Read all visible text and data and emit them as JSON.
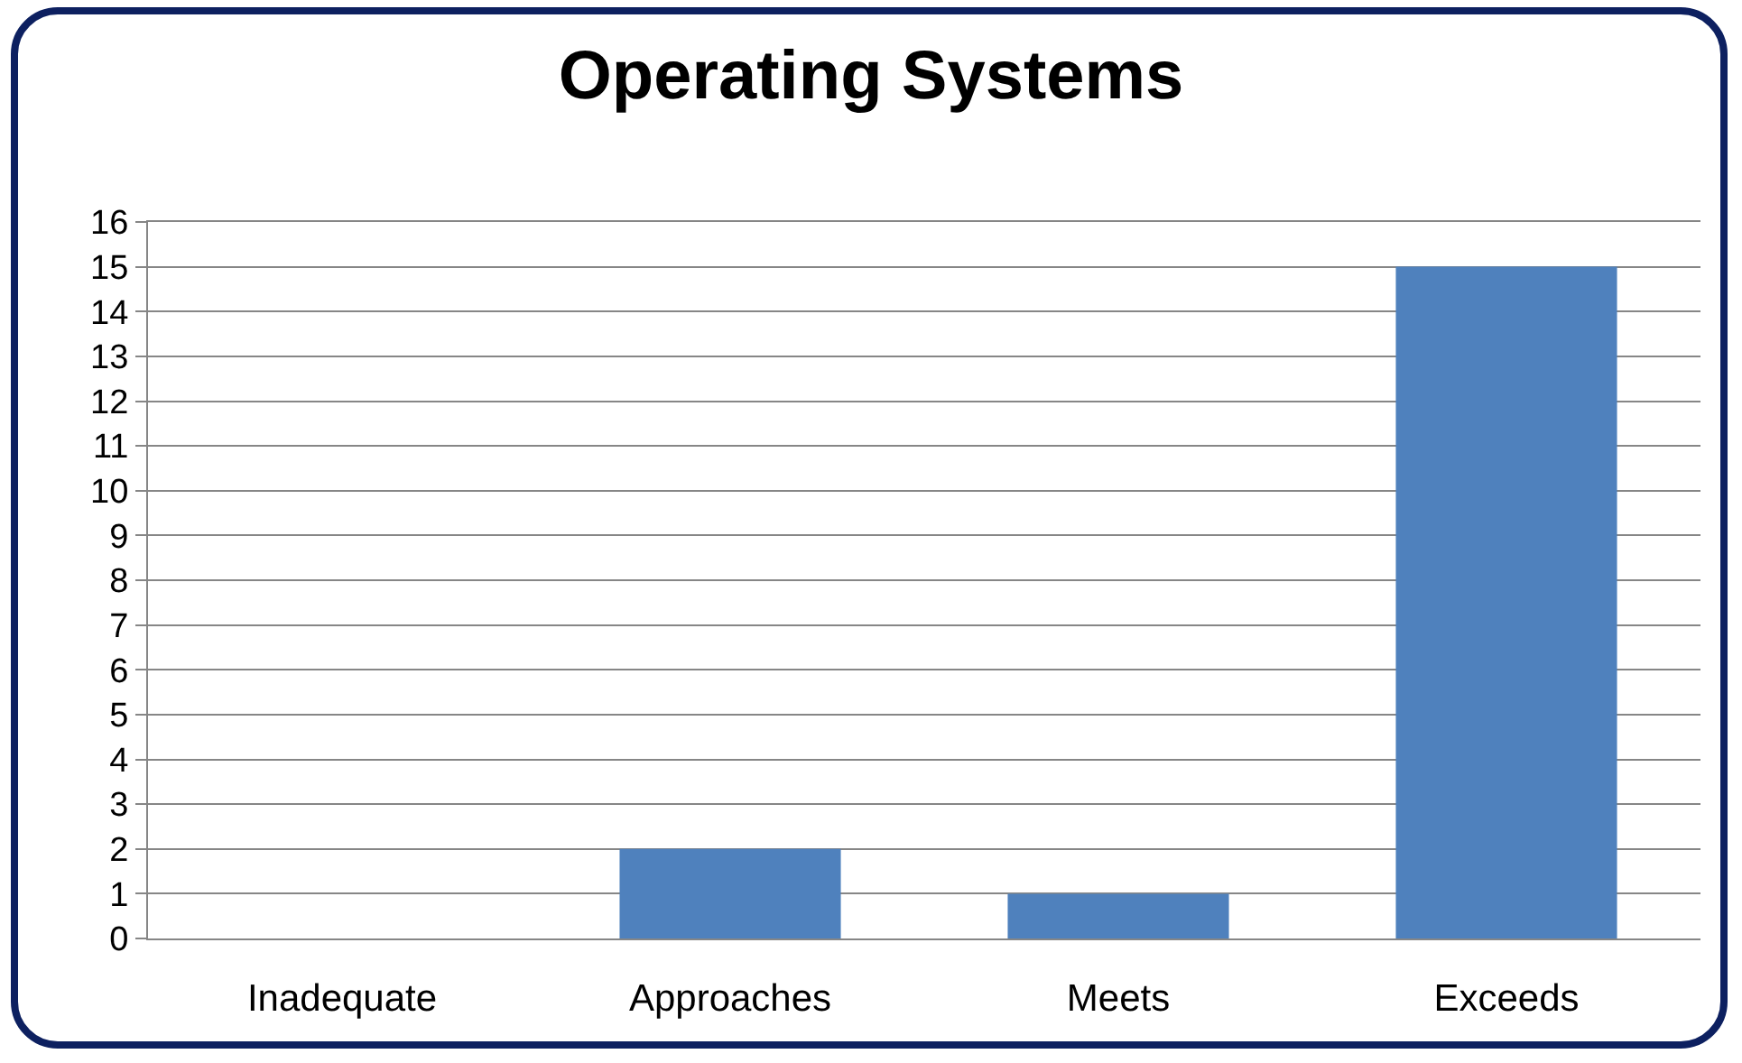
{
  "chart_data": {
    "type": "bar",
    "title": "Operating Systems",
    "categories": [
      "Inadequate",
      "Approaches",
      "Meets",
      "Exceeds"
    ],
    "values": [
      0,
      2,
      1,
      15
    ],
    "color": "#4f81bd",
    "ylim": [
      0,
      16
    ],
    "yticks": [
      0,
      1,
      2,
      3,
      4,
      5,
      6,
      7,
      8,
      9,
      10,
      11,
      12,
      13,
      14,
      15,
      16
    ],
    "grid": "y"
  }
}
